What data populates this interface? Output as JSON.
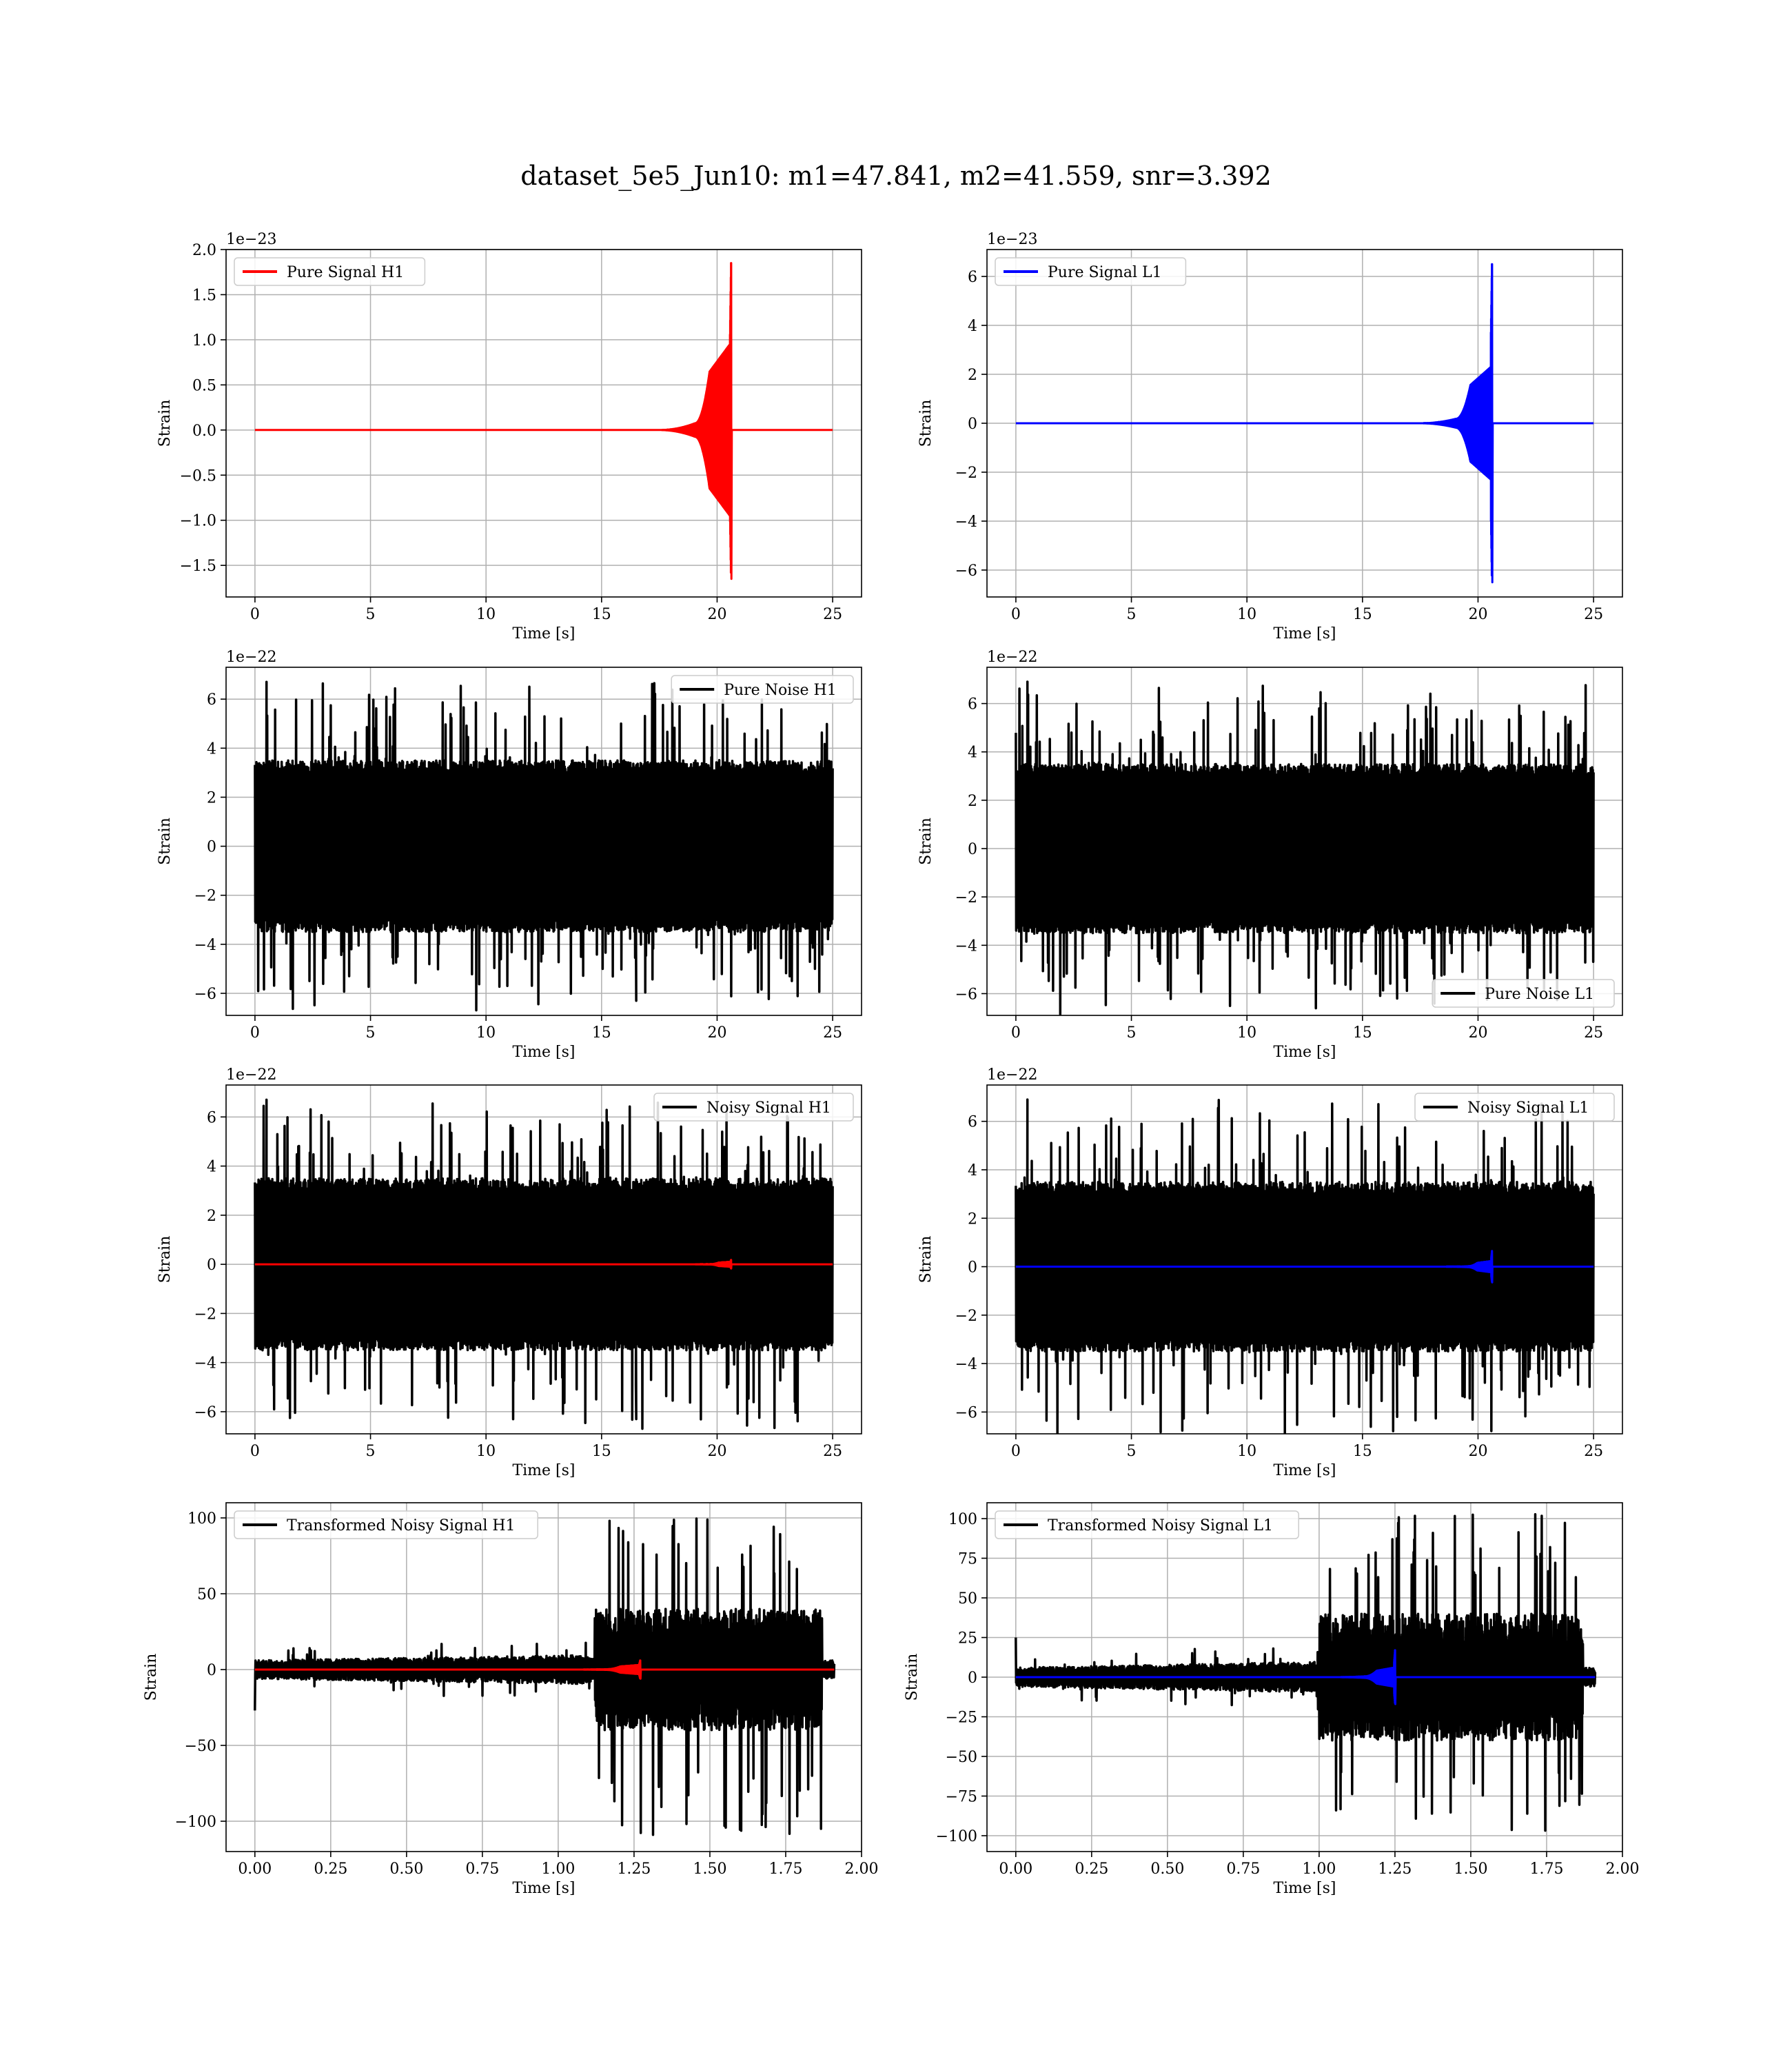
{
  "figure": {
    "title": "dataset_5e5_Jun10: m1=47.841, m2=41.559, snr=3.392"
  },
  "colors": {
    "h1": "#ff0000",
    "l1": "#0000ff",
    "noise": "#000000",
    "grid": "#b0b0b0",
    "axes": "#000000",
    "legend_border": "#cccccc"
  },
  "chart_data": [
    {
      "id": "pure-signal-h1",
      "type": "line",
      "xlabel": "Time [s]",
      "ylabel": "Strain",
      "offset_text": "1e−23",
      "xlim": [
        -1.25,
        26.25
      ],
      "ylim": [
        -1.85,
        2.0
      ],
      "xticks": [
        0,
        5,
        10,
        15,
        20,
        25
      ],
      "xtick_labels": [
        "0",
        "5",
        "10",
        "15",
        "20",
        "25"
      ],
      "yticks": [
        -1.5,
        -1.0,
        -0.5,
        0.0,
        0.5,
        1.0,
        1.5,
        2.0
      ],
      "ytick_labels": [
        "−1.5",
        "−1.0",
        "−0.5",
        "0.0",
        "0.5",
        "1.0",
        "1.5",
        "2.0"
      ],
      "grid": true,
      "legend": {
        "position": "upper-left",
        "entries": [
          {
            "label": "Pure Signal H1",
            "color": "#ff0000"
          }
        ]
      },
      "series": [
        {
          "name": "Pure Signal H1",
          "color": "#ff0000",
          "kind": "chirp",
          "x_range": [
            0,
            25
          ],
          "t_merge": 20.6,
          "t_start": 17.5,
          "plateau": 0.95,
          "peak_pos": 1.85,
          "peak_neg": -1.65,
          "baseline": 0
        }
      ]
    },
    {
      "id": "pure-signal-l1",
      "type": "line",
      "xlabel": "Time [s]",
      "ylabel": "Strain",
      "offset_text": "1e−23",
      "xlim": [
        -1.25,
        26.25
      ],
      "ylim": [
        -7.1,
        7.1
      ],
      "xticks": [
        0,
        5,
        10,
        15,
        20,
        25
      ],
      "xtick_labels": [
        "0",
        "5",
        "10",
        "15",
        "20",
        "25"
      ],
      "yticks": [
        -6,
        -4,
        -2,
        0,
        2,
        4,
        6
      ],
      "ytick_labels": [
        "−6",
        "−4",
        "−2",
        "0",
        "2",
        "4",
        "6"
      ],
      "grid": true,
      "legend": {
        "position": "upper-left",
        "entries": [
          {
            "label": "Pure Signal L1",
            "color": "#0000ff"
          }
        ]
      },
      "series": [
        {
          "name": "Pure Signal L1",
          "color": "#0000ff",
          "kind": "chirp",
          "x_range": [
            0,
            25
          ],
          "t_merge": 20.6,
          "t_start": 17.5,
          "plateau": 2.3,
          "peak_pos": 6.5,
          "peak_neg": -6.5,
          "baseline": 0
        }
      ]
    },
    {
      "id": "pure-noise-h1",
      "type": "line",
      "xlabel": "Time [s]",
      "ylabel": "Strain",
      "offset_text": "1e−22",
      "xlim": [
        -1.25,
        26.25
      ],
      "ylim": [
        -6.9,
        7.3
      ],
      "xticks": [
        0,
        5,
        10,
        15,
        20,
        25
      ],
      "xtick_labels": [
        "0",
        "5",
        "10",
        "15",
        "20",
        "25"
      ],
      "yticks": [
        -6,
        -4,
        -2,
        0,
        2,
        4,
        6
      ],
      "ytick_labels": [
        "−6",
        "−4",
        "−2",
        "0",
        "2",
        "4",
        "6"
      ],
      "grid": true,
      "legend": {
        "position": "upper-right",
        "entries": [
          {
            "label": "Pure Noise H1",
            "color": "#000000"
          }
        ]
      },
      "series": [
        {
          "name": "Pure Noise H1",
          "color": "#000000",
          "kind": "noise",
          "x_range": [
            0,
            25
          ],
          "band": 3.5,
          "spike_max": 6.7,
          "spike_min": -6.3
        }
      ]
    },
    {
      "id": "pure-noise-l1",
      "type": "line",
      "xlabel": "Time [s]",
      "ylabel": "Strain",
      "offset_text": "1e−22",
      "xlim": [
        -1.25,
        26.25
      ],
      "ylim": [
        -6.9,
        7.5
      ],
      "xticks": [
        0,
        5,
        10,
        15,
        20,
        25
      ],
      "xtick_labels": [
        "0",
        "5",
        "10",
        "15",
        "20",
        "25"
      ],
      "yticks": [
        -6,
        -4,
        -2,
        0,
        2,
        4,
        6
      ],
      "ytick_labels": [
        "−6",
        "−4",
        "−2",
        "0",
        "2",
        "4",
        "6"
      ],
      "grid": true,
      "legend": {
        "position": "lower-right",
        "entries": [
          {
            "label": "Pure Noise L1",
            "color": "#000000"
          }
        ]
      },
      "series": [
        {
          "name": "Pure Noise L1",
          "color": "#000000",
          "kind": "noise",
          "x_range": [
            0,
            25
          ],
          "band": 3.5,
          "spike_max": 6.9,
          "spike_min": -6.2
        }
      ]
    },
    {
      "id": "noisy-signal-h1",
      "type": "line",
      "xlabel": "Time [s]",
      "ylabel": "Strain",
      "offset_text": "1e−22",
      "xlim": [
        -1.25,
        26.25
      ],
      "ylim": [
        -6.9,
        7.3
      ],
      "xticks": [
        0,
        5,
        10,
        15,
        20,
        25
      ],
      "xtick_labels": [
        "0",
        "5",
        "10",
        "15",
        "20",
        "25"
      ],
      "yticks": [
        -6,
        -4,
        -2,
        0,
        2,
        4,
        6
      ],
      "ytick_labels": [
        "−6",
        "−4",
        "−2",
        "0",
        "2",
        "4",
        "6"
      ],
      "grid": true,
      "legend": {
        "position": "upper-right",
        "entries": [
          {
            "label": "Noisy Signal H1",
            "color": "#000000"
          }
        ]
      },
      "series": [
        {
          "name": "Noisy Signal H1",
          "color": "#000000",
          "kind": "noise",
          "x_range": [
            0,
            25
          ],
          "band": 3.5,
          "spike_max": 6.7,
          "spike_min": -6.3
        },
        {
          "name": "",
          "color": "#ff0000",
          "kind": "chirp",
          "x_range": [
            0,
            25
          ],
          "t_merge": 20.6,
          "t_start": 18.8,
          "plateau": 0.1,
          "peak_pos": 0.18,
          "peak_neg": -0.17,
          "baseline": 0
        }
      ]
    },
    {
      "id": "noisy-signal-l1",
      "type": "line",
      "xlabel": "Time [s]",
      "ylabel": "Strain",
      "offset_text": "1e−22",
      "xlim": [
        -1.25,
        26.25
      ],
      "ylim": [
        -6.9,
        7.5
      ],
      "xticks": [
        0,
        5,
        10,
        15,
        20,
        25
      ],
      "xtick_labels": [
        "0",
        "5",
        "10",
        "15",
        "20",
        "25"
      ],
      "yticks": [
        -6,
        -4,
        -2,
        0,
        2,
        4,
        6
      ],
      "ytick_labels": [
        "−6",
        "−4",
        "−2",
        "0",
        "2",
        "4",
        "6"
      ],
      "grid": true,
      "legend": {
        "position": "upper-right",
        "entries": [
          {
            "label": "Noisy Signal L1",
            "color": "#000000"
          }
        ]
      },
      "series": [
        {
          "name": "Noisy Signal L1",
          "color": "#000000",
          "kind": "noise",
          "x_range": [
            0,
            25
          ],
          "band": 3.5,
          "spike_max": 6.9,
          "spike_min": -6.2
        },
        {
          "name": "",
          "color": "#0000ff",
          "kind": "chirp",
          "x_range": [
            0,
            25
          ],
          "t_merge": 20.6,
          "t_start": 18.5,
          "plateau": 0.23,
          "peak_pos": 0.65,
          "peak_neg": -0.65,
          "baseline": 0
        }
      ]
    },
    {
      "id": "transformed-noisy-signal-h1",
      "type": "line",
      "xlabel": "Time [s]",
      "ylabel": "Strain",
      "offset_text": "",
      "xlim": [
        -0.095,
        2.0
      ],
      "ylim": [
        -120,
        110
      ],
      "xticks": [
        0.0,
        0.25,
        0.5,
        0.75,
        1.0,
        1.25,
        1.5,
        1.75,
        2.0
      ],
      "xtick_labels": [
        "0.00",
        "0.25",
        "0.50",
        "0.75",
        "1.00",
        "1.25",
        "1.50",
        "1.75",
        "2.00"
      ],
      "yticks": [
        -100,
        -50,
        0,
        50,
        100
      ],
      "ytick_labels": [
        "−100",
        "−50",
        "0",
        "50",
        "100"
      ],
      "grid": true,
      "legend": {
        "position": "upper-left",
        "entries": [
          {
            "label": "Transformed Noisy Signal H1",
            "color": "#000000"
          }
        ]
      },
      "series": [
        {
          "name": "Transformed Noisy Signal H1",
          "color": "#000000",
          "kind": "whitened",
          "x_range": [
            0,
            1.91
          ],
          "t_jump": 1.12,
          "t_end_burst": 1.87,
          "band_low": 6,
          "band_high": 40,
          "spike_max": 100,
          "spike_min": -110,
          "first_value": -27
        },
        {
          "name": "",
          "color": "#ff0000",
          "kind": "chirp",
          "x_range": [
            0,
            1.91
          ],
          "t_merge": 1.27,
          "t_start": 1.05,
          "plateau": 3,
          "peak_pos": 6,
          "peak_neg": -6,
          "baseline": 0
        }
      ]
    },
    {
      "id": "transformed-noisy-signal-l1",
      "type": "line",
      "xlabel": "Time [s]",
      "ylabel": "Strain",
      "offset_text": "",
      "xlim": [
        -0.095,
        2.0
      ],
      "ylim": [
        -110,
        110
      ],
      "xticks": [
        0.0,
        0.25,
        0.5,
        0.75,
        1.0,
        1.25,
        1.5,
        1.75,
        2.0
      ],
      "xtick_labels": [
        "0.00",
        "0.25",
        "0.50",
        "0.75",
        "1.00",
        "1.25",
        "1.50",
        "1.75",
        "2.00"
      ],
      "yticks": [
        -100,
        -75,
        -50,
        -25,
        0,
        25,
        50,
        75,
        100
      ],
      "ytick_labels": [
        "−100",
        "−75",
        "−50",
        "−25",
        "0",
        "25",
        "50",
        "75",
        "100"
      ],
      "grid": true,
      "legend": {
        "position": "upper-left",
        "entries": [
          {
            "label": "Transformed Noisy Signal L1",
            "color": "#000000"
          }
        ]
      },
      "series": [
        {
          "name": "Transformed Noisy Signal L1",
          "color": "#000000",
          "kind": "whitened",
          "x_range": [
            0,
            1.91
          ],
          "t_jump": 1.0,
          "t_end_burst": 1.87,
          "band_low": 6,
          "band_high": 40,
          "spike_max": 103,
          "spike_min": -98,
          "first_value": 25
        },
        {
          "name": "",
          "color": "#0000ff",
          "kind": "chirp",
          "x_range": [
            0,
            1.91
          ],
          "t_merge": 1.25,
          "t_start": 1.05,
          "plateau": 6,
          "peak_pos": 17,
          "peak_neg": -17,
          "baseline": 0
        }
      ]
    }
  ]
}
